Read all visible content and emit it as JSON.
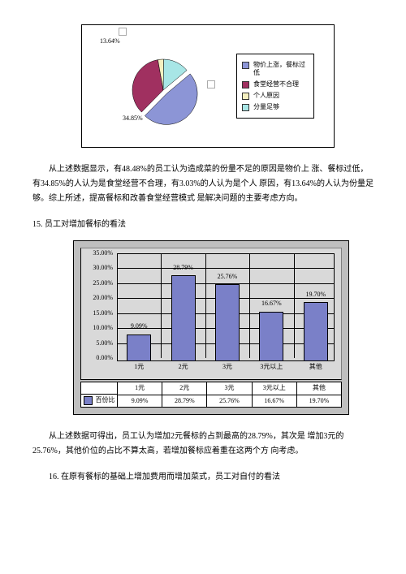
{
  "pie": {
    "type": "pie",
    "values": [
      48.48,
      34.85,
      3.03,
      13.64
    ],
    "colors": [
      "#8c95d6",
      "#a03060",
      "#f5f0c0",
      "#a8e6e6"
    ],
    "labels": [
      "物价上涨，餐标过低",
      "食堂经营不合理",
      "个人原因",
      "分量足够"
    ],
    "callouts": [
      {
        "text": "13.64%",
        "for": 3
      },
      {
        "text": "34.85%",
        "for": 1
      }
    ],
    "background": "#ffffff",
    "font_size": 8
  },
  "para1": "从上述数据显示，有48.48%的员工认为造成菜的份量不足的原因是物价上 涨、餐标过低，有34.85%的人认为是食堂经营不合理，有3.03%的人认为是个人 原因，有13.64%的人认为份量足够。综上所述，提高餐标和改善食堂经营模式 是解决问题的主要考虑方向。",
  "heading15": "15. 员工对增加餐标的看法",
  "bar": {
    "type": "bar",
    "categories": [
      "1元",
      "2元",
      "3元",
      "3元以上",
      "其他"
    ],
    "values": [
      9.09,
      28.79,
      25.76,
      16.67,
      19.7
    ],
    "value_labels": [
      "9.09%",
      "28.79%",
      "25.76%",
      "16.67%",
      "19.70%"
    ],
    "bar_color": "#7a80c8",
    "grid_background": "#d9d9d9",
    "outer_background": "#bfbfbf",
    "ymax": 35.0,
    "ytick_step": 5.0,
    "ytick_labels": [
      "0.00%",
      "5.00%",
      "10.00%",
      "15.00%",
      "20.00%",
      "25.00%",
      "30.00%",
      "35.00%"
    ],
    "bar_width": 0.55,
    "series_name": "百份比",
    "row_values": [
      "9.09%",
      "28.79%",
      "25.76%",
      "16.67%",
      "19.70%"
    ],
    "font_size": 8
  },
  "para2": "从上述数据可得出，员工认为增加2元餐标的占到最高的28.79%，其次是 增加3元的25.76%，其他价位的占比不算太高，若增加餐标应着重在这两个方 向考虑。",
  "heading16": "16. 在原有餐标的基础上增加费用而增加菜式，员工对自付的看法"
}
